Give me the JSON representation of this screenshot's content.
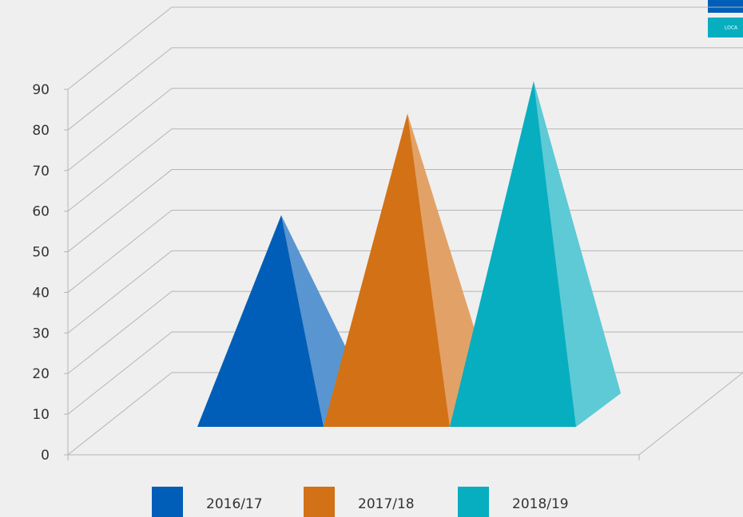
{
  "chart_data": {
    "type": "pyramid3d",
    "series": [
      {
        "name": "2016/17",
        "color": "#005eb8",
        "values": [
          48
        ]
      },
      {
        "name": "2017/18",
        "color": "#d37116",
        "values": [
          73
        ]
      },
      {
        "name": "2018/19",
        "color": "#07aec0",
        "values": [
          81
        ]
      }
    ],
    "ylim": [
      0,
      90
    ],
    "yticks": [
      0,
      10,
      20,
      30,
      40,
      50,
      60,
      70,
      80,
      90
    ],
    "grid": true,
    "legend": "bottom"
  },
  "logo_text": "LOCA"
}
